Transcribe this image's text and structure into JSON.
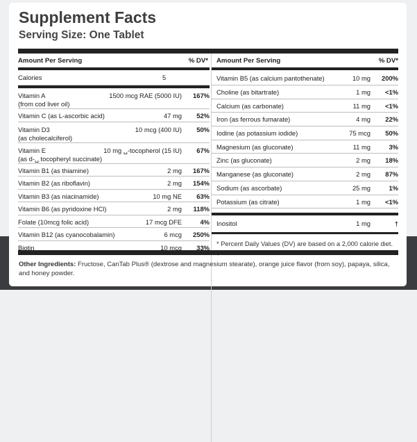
{
  "title": "Supplement Facts",
  "serving": "Serving Size: One Tablet",
  "left": {
    "header_amount": "Amount Per Serving",
    "header_dv": "% DV*",
    "calories_label": "Calories",
    "calories_value": "5",
    "rows": [
      {
        "name": "Vitamin A",
        "sub": "(from cod liver oil)",
        "amount": "1500 mcg RAE (5000 IU)",
        "dv": "167%"
      },
      {
        "name": "Vitamin C (as L-ascorbic acid)",
        "sub": "",
        "amount": "47 mg",
        "dv": "52%"
      },
      {
        "name": "Vitamin D3",
        "sub": "(as cholecalciferol)",
        "amount": "10 mcg (400 IU)",
        "dv": "50%"
      },
      {
        "name": "Vitamin E",
        "sub": "(as d-␣ tocopheryl succinate)",
        "amount": "10 mg ␣-tocopherol (15 IU)",
        "dv": "67%"
      },
      {
        "name": "Vitamin B1 (as thiamine)",
        "sub": "",
        "amount": "2 mg",
        "dv": "167%"
      },
      {
        "name": "Vitamin B2 (as riboflavin)",
        "sub": "",
        "amount": "2 mg",
        "dv": "154%"
      },
      {
        "name": "Vitamin B3 (as niacinamide)",
        "sub": "",
        "amount": "10 mg NE",
        "dv": "63%"
      },
      {
        "name": "Vitamin B6 (as pyridoxine HCl)",
        "sub": "",
        "amount": "2 mg",
        "dv": "118%"
      },
      {
        "name": "Folate (10mcg folic acid)",
        "sub": "",
        "amount": "17 mcg DFE",
        "dv": "4%"
      },
      {
        "name": "Vitamin B12 (as cyanocobalamin)",
        "sub": "",
        "amount": "6 mcg",
        "dv": "250%"
      },
      {
        "name": "Biotin",
        "sub": "",
        "amount": "10 mcg",
        "dv": "33%"
      }
    ]
  },
  "right": {
    "header_amount": "Amount Per Serving",
    "header_dv": "% DV*",
    "rows": [
      {
        "name": "Vitamin B5 (as calcium pantothenate)",
        "amount": "10 mg",
        "dv": "200%"
      },
      {
        "name": "Choline (as bitartrate)",
        "amount": "1 mg",
        "dv": "<1%"
      },
      {
        "name": "Calcium (as carbonate)",
        "amount": "11 mg",
        "dv": "<1%"
      },
      {
        "name": "Iron (as ferrous fumarate)",
        "amount": "4 mg",
        "dv": "22%"
      },
      {
        "name": "Iodine (as potassium iodide)",
        "amount": "75 mcg",
        "dv": "50%"
      },
      {
        "name": "Magnesium (as gluconate)",
        "amount": "11 mg",
        "dv": "3%"
      },
      {
        "name": "Zinc (as gluconate)",
        "amount": "2 mg",
        "dv": "18%"
      },
      {
        "name": "Manganese (as gluconate)",
        "amount": "2 mg",
        "dv": "87%"
      },
      {
        "name": "Sodium (as ascorbate)",
        "amount": "25 mg",
        "dv": "1%"
      },
      {
        "name": "Potassium (as citrate)",
        "amount": "1 mg",
        "dv": "<1%"
      }
    ],
    "inositol_name": "Inositol",
    "inositol_amount": "1 mg",
    "inositol_dv": "†",
    "footnote": "* Percent Daily Values (DV) are based on a 2,000 calorie diet. † DV is not established."
  },
  "other_ingredients_label": "Other Ingredients:",
  "other_ingredients_text": " Fructose, CanTab Plus® (dextrose and magnesium stearate), orange juice flavor (from soy), papaya, silica, and honey powder."
}
